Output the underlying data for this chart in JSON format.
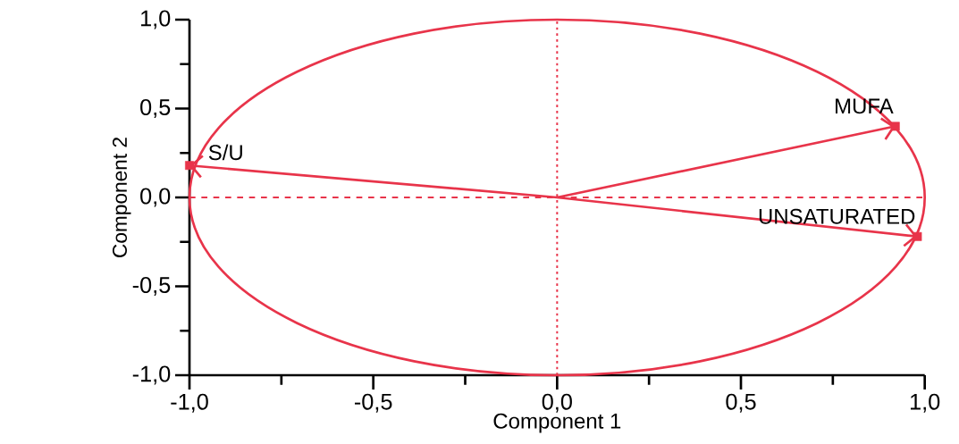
{
  "chart_data": {
    "type": "scatter",
    "xlabel": "Component 1",
    "ylabel": "Component 2",
    "xlim": [
      -1,
      1
    ],
    "ylim": [
      -1,
      1
    ],
    "xticks": [
      {
        "value": -1,
        "label": "-1,0"
      },
      {
        "value": -0.75,
        "label": null
      },
      {
        "value": -0.5,
        "label": "-0,5"
      },
      {
        "value": -0.25,
        "label": null
      },
      {
        "value": 0,
        "label": "0,0"
      },
      {
        "value": 0.25,
        "label": null
      },
      {
        "value": 0.5,
        "label": "0,5"
      },
      {
        "value": 0.75,
        "label": null
      },
      {
        "value": 1,
        "label": "1,0"
      }
    ],
    "yticks": [
      {
        "value": -1,
        "label": "-1,0"
      },
      {
        "value": -0.75,
        "label": null
      },
      {
        "value": -0.5,
        "label": "-0,5"
      },
      {
        "value": -0.25,
        "label": null
      },
      {
        "value": 0,
        "label": "0,0"
      },
      {
        "value": 0.25,
        "label": null
      },
      {
        "value": 0.5,
        "label": "0,5"
      },
      {
        "value": 0.75,
        "label": null
      },
      {
        "value": 1,
        "label": "1,0"
      }
    ],
    "marker": "square",
    "series": [
      {
        "color": "#e8344a",
        "x": [
          -1.0,
          0.92,
          0.98
        ],
        "values": [
          0.18,
          0.4,
          -0.22
        ]
      }
    ],
    "annotations": [
      {
        "text": "S/U",
        "x": -1.0,
        "y": 0.18
      },
      {
        "text": "MUFA",
        "x": 0.92,
        "y": 0.4
      },
      {
        "text": "UNSATURATED",
        "x": 0.98,
        "y": -0.22
      }
    ],
    "ref_lines": [
      {
        "axis": "x",
        "value": 0,
        "color": "#e8344a",
        "line_style": "dotted"
      },
      {
        "axis": "y",
        "value": 0,
        "color": "#e8344a",
        "line_style": "dashed"
      }
    ]
  }
}
